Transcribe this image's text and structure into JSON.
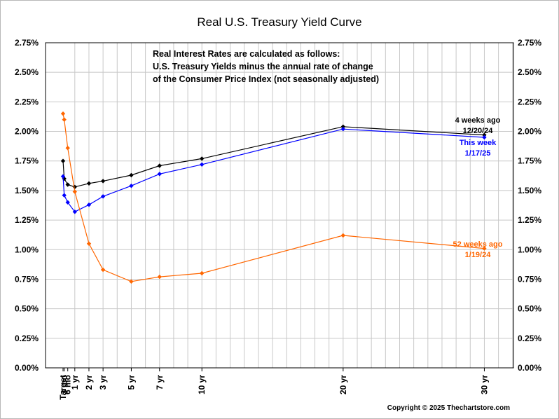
{
  "chart_data": {
    "type": "line",
    "title": "Real U.S. Treasury Yield Curve",
    "note": [
      "Real Interest Rates are calculated as follows:",
      "U.S. Treasury Yields minus the annual rate of change",
      "of the Consumer Price Index (not seasonally adjusted)"
    ],
    "copyright": "Copyright © 2025 Thechartstore.com",
    "y_ticks": [
      "0.00%",
      "0.25%",
      "0.50%",
      "0.75%",
      "1.00%",
      "1.25%",
      "1.50%",
      "1.75%",
      "2.00%",
      "2.25%",
      "2.50%",
      "2.75%"
    ],
    "ylim": [
      0,
      2.75
    ],
    "x_tick_labels": [
      "Target",
      "3 mo",
      "6 mo",
      "1 yr",
      "2 yr",
      "3 yr",
      "5 yr",
      "7 yr",
      "10 yr",
      "20 yr",
      "30 yr"
    ],
    "x_scale": "months (Target placed one month left of 3 mo)",
    "x_values_months": [
      2,
      3,
      6,
      12,
      24,
      36,
      60,
      84,
      120,
      240,
      360
    ],
    "grid": true,
    "series": [
      {
        "name_lines": [
          "4 weeks ago",
          "12/20/24"
        ],
        "color": "#000000",
        "values": [
          1.75,
          1.6,
          1.55,
          1.53,
          1.56,
          1.58,
          1.63,
          1.71,
          1.77,
          2.04,
          1.97
        ]
      },
      {
        "name_lines": [
          "This week",
          "1/17/25"
        ],
        "color": "#0000ff",
        "values": [
          1.62,
          1.46,
          1.4,
          1.32,
          1.38,
          1.45,
          1.54,
          1.64,
          1.72,
          2.02,
          1.95
        ]
      },
      {
        "name_lines": [
          "52 weeks ago",
          "1/19/24"
        ],
        "color": "#ff6600",
        "values": [
          2.15,
          2.1,
          1.86,
          1.49,
          1.05,
          0.83,
          0.73,
          0.77,
          0.8,
          1.12,
          1.01
        ]
      }
    ]
  }
}
